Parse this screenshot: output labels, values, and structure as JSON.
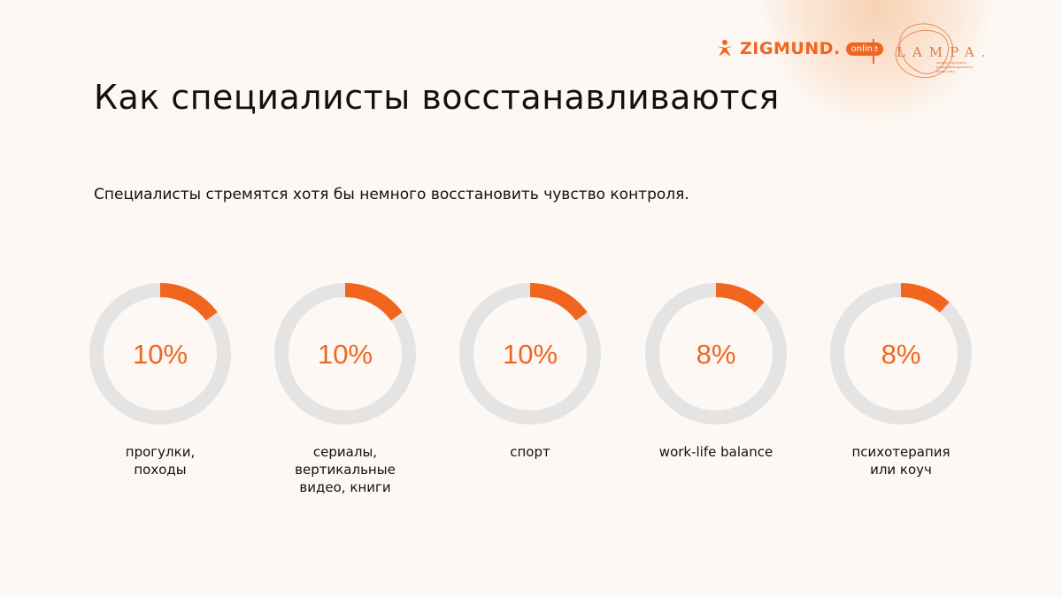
{
  "header": {
    "title": "Как специалисты восстанавливаются",
    "subtitle": "Специалисты стремятся хотя бы немного восстановить чувство контроля."
  },
  "logos": {
    "zigmund": "ZIGMUND.",
    "zigmund_badge": "online",
    "lampa": "LAMPA.",
    "lampa_tagline": "международное коммуникационное агентство"
  },
  "colors": {
    "accent": "#f2651f",
    "track": "#e4e4e4",
    "background": "#fdf8f4"
  },
  "chart_data": {
    "type": "donut",
    "unit": "%",
    "categories": [
      "прогулки, походы",
      "сериалы, вертикальные видео, книги",
      "спорт",
      "work-life balance",
      "психотерапия или коуч"
    ],
    "values": [
      10,
      10,
      10,
      8,
      8
    ],
    "labels": [
      "10%",
      "10%",
      "10%",
      "8%",
      "8%"
    ]
  }
}
